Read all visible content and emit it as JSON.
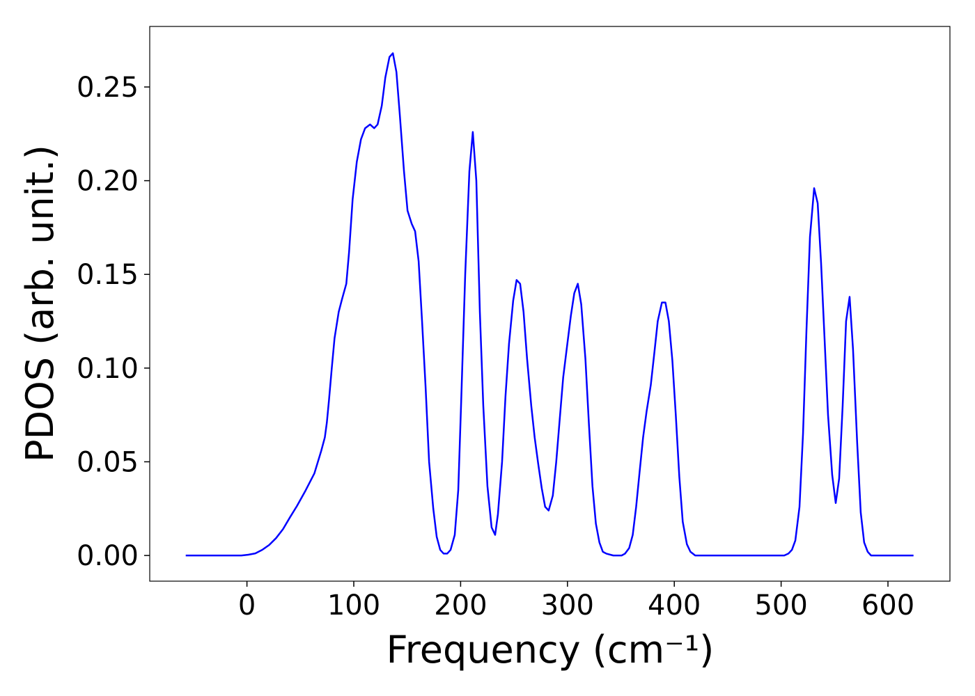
{
  "chart_data": {
    "type": "line",
    "xlabel": "Frequency (cm⁻¹)",
    "ylabel": "PDOS (arb. unit.)",
    "color": "#0000ff",
    "xlim": [
      -91,
      658
    ],
    "ylim": [
      -0.0137,
      0.2823
    ],
    "xticks": [
      0,
      100,
      200,
      300,
      400,
      500,
      600
    ],
    "yticks": [
      {
        "value": 0,
        "label": "0.00"
      },
      0.05,
      {
        "value": 0.1,
        "label": "0.10"
      },
      0.15,
      {
        "value": 0.2,
        "label": "0.20"
      },
      0.25
    ],
    "x": [
      -57.3,
      -5.2,
      1.3,
      7.8,
      14.3,
      20.8,
      27.3,
      33.8,
      40.3,
      46.8,
      54.7,
      63.1,
      69.6,
      72.9,
      74.8,
      76.8,
      79.4,
      82.0,
      85.9,
      89.1,
      93.0,
      95.6,
      98.9,
      102.8,
      106.7,
      110.6,
      115.2,
      119.1,
      122.3,
      126.2,
      129.5,
      133.4,
      136.6,
      139.9,
      143.1,
      147.0,
      150.3,
      154.2,
      157.4,
      160.7,
      163.9,
      167.2,
      170.5,
      174.4,
      177.6,
      180.9,
      184.1,
      187.4,
      190.6,
      194.5,
      197.8,
      200.4,
      204.3,
      208.2,
      211.4,
      214.7,
      218.0,
      221.2,
      225.1,
      229.0,
      232.3,
      234.9,
      238.8,
      242.0,
      245.3,
      249.2,
      252.4,
      255.7,
      258.9,
      262.2,
      266.1,
      269.3,
      272.6,
      275.9,
      279.1,
      282.4,
      286.3,
      289.5,
      292.8,
      296.0,
      299.9,
      303.2,
      306.4,
      309.7,
      312.9,
      316.8,
      320.1,
      323.4,
      326.6,
      329.9,
      333.1,
      336.4,
      342.9,
      350.7,
      353.9,
      357.8,
      361.1,
      364.3,
      367.6,
      370.8,
      374.1,
      378.0,
      381.3,
      384.5,
      388.4,
      391.7,
      394.9,
      398.2,
      401.4,
      404.7,
      407.9,
      411.8,
      415.1,
      419.6,
      502.9,
      506.8,
      510.1,
      513.3,
      517.2,
      520.5,
      523.7,
      527.0,
      530.9,
      534.2,
      537.4,
      540.7,
      543.9,
      547.8,
      551.1,
      554.3,
      557.6,
      560.8,
      564.1,
      567.3,
      571.2,
      574.5,
      577.7,
      581.0,
      584.2,
      623.9
    ],
    "values": [
      0,
      0,
      0.0004,
      0.0011,
      0.003,
      0.0056,
      0.0093,
      0.0141,
      0.0204,
      0.0264,
      0.0345,
      0.0438,
      0.056,
      0.063,
      0.071,
      0.083,
      0.1,
      0.116,
      0.13,
      0.137,
      0.145,
      0.162,
      0.19,
      0.21,
      0.222,
      0.228,
      0.23,
      0.228,
      0.23,
      0.24,
      0.255,
      0.266,
      0.268,
      0.258,
      0.235,
      0.205,
      0.184,
      0.177,
      0.173,
      0.157,
      0.125,
      0.09,
      0.05,
      0.025,
      0.01,
      0.003,
      0.001,
      0.001,
      0.003,
      0.011,
      0.035,
      0.08,
      0.15,
      0.205,
      0.226,
      0.2,
      0.13,
      0.08,
      0.037,
      0.015,
      0.011,
      0.022,
      0.05,
      0.085,
      0.113,
      0.136,
      0.147,
      0.145,
      0.13,
      0.105,
      0.08,
      0.063,
      0.049,
      0.036,
      0.026,
      0.024,
      0.032,
      0.05,
      0.073,
      0.095,
      0.113,
      0.128,
      0.14,
      0.145,
      0.134,
      0.105,
      0.07,
      0.037,
      0.017,
      0.007,
      0.002,
      0.001,
      0,
      0,
      0.001,
      0.004,
      0.011,
      0.026,
      0.045,
      0.063,
      0.077,
      0.091,
      0.108,
      0.125,
      0.135,
      0.135,
      0.125,
      0.104,
      0.075,
      0.042,
      0.018,
      0.006,
      0.002,
      0,
      0,
      0.001,
      0.003,
      0.008,
      0.026,
      0.065,
      0.12,
      0.17,
      0.196,
      0.188,
      0.156,
      0.115,
      0.075,
      0.043,
      0.028,
      0.041,
      0.08,
      0.125,
      0.138,
      0.11,
      0.06,
      0.023,
      0.007,
      0.002,
      0,
      0
    ]
  }
}
